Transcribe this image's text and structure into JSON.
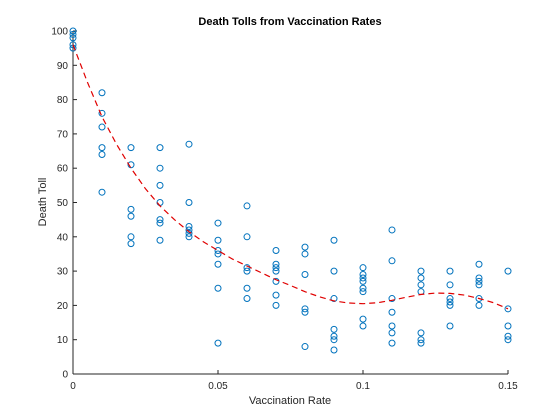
{
  "chart_data": {
    "type": "scatter",
    "title": "Death Tolls from Vaccination Rates",
    "xlabel": "Vaccination Rate",
    "ylabel": "Death Toll",
    "xlim": [
      0,
      0.15
    ],
    "ylim": [
      0,
      100
    ],
    "x_ticks": [
      0,
      0.05,
      0.1,
      0.15
    ],
    "x_tick_labels": [
      "0",
      "0.05",
      "0.1",
      "0.15"
    ],
    "y_ticks": [
      0,
      10,
      20,
      30,
      40,
      50,
      60,
      70,
      80,
      90,
      100
    ],
    "y_tick_labels": [
      "0",
      "10",
      "20",
      "30",
      "40",
      "50",
      "60",
      "70",
      "80",
      "90",
      "100"
    ],
    "grid": false,
    "colors": {
      "points": "#0072bd",
      "fit": "#e00000",
      "axes": "#262626"
    },
    "series": [
      {
        "kind": "scatter",
        "marker": "circle-open",
        "points": [
          [
            0,
            100
          ],
          [
            0,
            99
          ],
          [
            0,
            98
          ],
          [
            0,
            96
          ],
          [
            0,
            95
          ],
          [
            0.01,
            82
          ],
          [
            0.01,
            76
          ],
          [
            0.01,
            72
          ],
          [
            0.01,
            66
          ],
          [
            0.01,
            64
          ],
          [
            0.01,
            53
          ],
          [
            0.02,
            66
          ],
          [
            0.02,
            61
          ],
          [
            0.02,
            48
          ],
          [
            0.02,
            46
          ],
          [
            0.02,
            40
          ],
          [
            0.02,
            38
          ],
          [
            0.03,
            66
          ],
          [
            0.03,
            60
          ],
          [
            0.03,
            55
          ],
          [
            0.03,
            50
          ],
          [
            0.03,
            45
          ],
          [
            0.03,
            44
          ],
          [
            0.03,
            39
          ],
          [
            0.04,
            67
          ],
          [
            0.04,
            50
          ],
          [
            0.04,
            43
          ],
          [
            0.04,
            42
          ],
          [
            0.04,
            41
          ],
          [
            0.04,
            40
          ],
          [
            0.05,
            44
          ],
          [
            0.05,
            39
          ],
          [
            0.05,
            36
          ],
          [
            0.05,
            35
          ],
          [
            0.05,
            32
          ],
          [
            0.05,
            25
          ],
          [
            0.05,
            9
          ],
          [
            0.06,
            49
          ],
          [
            0.06,
            40
          ],
          [
            0.06,
            31
          ],
          [
            0.06,
            30
          ],
          [
            0.06,
            25
          ],
          [
            0.06,
            22
          ],
          [
            0.07,
            36
          ],
          [
            0.07,
            32
          ],
          [
            0.07,
            31
          ],
          [
            0.07,
            30
          ],
          [
            0.07,
            27
          ],
          [
            0.07,
            23
          ],
          [
            0.07,
            20
          ],
          [
            0.08,
            37
          ],
          [
            0.08,
            35
          ],
          [
            0.08,
            29
          ],
          [
            0.08,
            19
          ],
          [
            0.08,
            18
          ],
          [
            0.08,
            8
          ],
          [
            0.09,
            39
          ],
          [
            0.09,
            30
          ],
          [
            0.09,
            22
          ],
          [
            0.09,
            13
          ],
          [
            0.09,
            11
          ],
          [
            0.09,
            10
          ],
          [
            0.09,
            7
          ],
          [
            0.1,
            31
          ],
          [
            0.1,
            29
          ],
          [
            0.1,
            28
          ],
          [
            0.1,
            27
          ],
          [
            0.1,
            25
          ],
          [
            0.1,
            24
          ],
          [
            0.1,
            16
          ],
          [
            0.1,
            14
          ],
          [
            0.11,
            42
          ],
          [
            0.11,
            33
          ],
          [
            0.11,
            22
          ],
          [
            0.11,
            18
          ],
          [
            0.11,
            14
          ],
          [
            0.11,
            12
          ],
          [
            0.11,
            9
          ],
          [
            0.12,
            30
          ],
          [
            0.12,
            28
          ],
          [
            0.12,
            26
          ],
          [
            0.12,
            24
          ],
          [
            0.12,
            12
          ],
          [
            0.12,
            10
          ],
          [
            0.12,
            9
          ],
          [
            0.13,
            30
          ],
          [
            0.13,
            26
          ],
          [
            0.13,
            22
          ],
          [
            0.13,
            21
          ],
          [
            0.13,
            20
          ],
          [
            0.13,
            14
          ],
          [
            0.14,
            32
          ],
          [
            0.14,
            28
          ],
          [
            0.14,
            27
          ],
          [
            0.14,
            26
          ],
          [
            0.14,
            22
          ],
          [
            0.14,
            20
          ],
          [
            0.15,
            30
          ],
          [
            0.15,
            19
          ],
          [
            0.15,
            14
          ],
          [
            0.15,
            11
          ],
          [
            0.15,
            10
          ]
        ]
      },
      {
        "kind": "line",
        "style": "dashed",
        "points": [
          [
            0,
            96
          ],
          [
            0.005,
            85
          ],
          [
            0.01,
            75
          ],
          [
            0.015,
            67
          ],
          [
            0.02,
            60
          ],
          [
            0.025,
            54
          ],
          [
            0.03,
            49
          ],
          [
            0.035,
            45
          ],
          [
            0.04,
            41.5
          ],
          [
            0.045,
            38.5
          ],
          [
            0.05,
            36
          ],
          [
            0.055,
            33.5
          ],
          [
            0.06,
            31.5
          ],
          [
            0.065,
            29.5
          ],
          [
            0.07,
            27.5
          ],
          [
            0.075,
            25.8
          ],
          [
            0.08,
            24
          ],
          [
            0.085,
            22.5
          ],
          [
            0.09,
            21.3
          ],
          [
            0.095,
            20.7
          ],
          [
            0.1,
            20.5
          ],
          [
            0.105,
            20.8
          ],
          [
            0.11,
            21.5
          ],
          [
            0.115,
            22.4
          ],
          [
            0.12,
            23.2
          ],
          [
            0.125,
            23.6
          ],
          [
            0.13,
            23.5
          ],
          [
            0.135,
            23
          ],
          [
            0.14,
            22
          ],
          [
            0.145,
            20.8
          ],
          [
            0.15,
            19
          ]
        ]
      }
    ]
  }
}
